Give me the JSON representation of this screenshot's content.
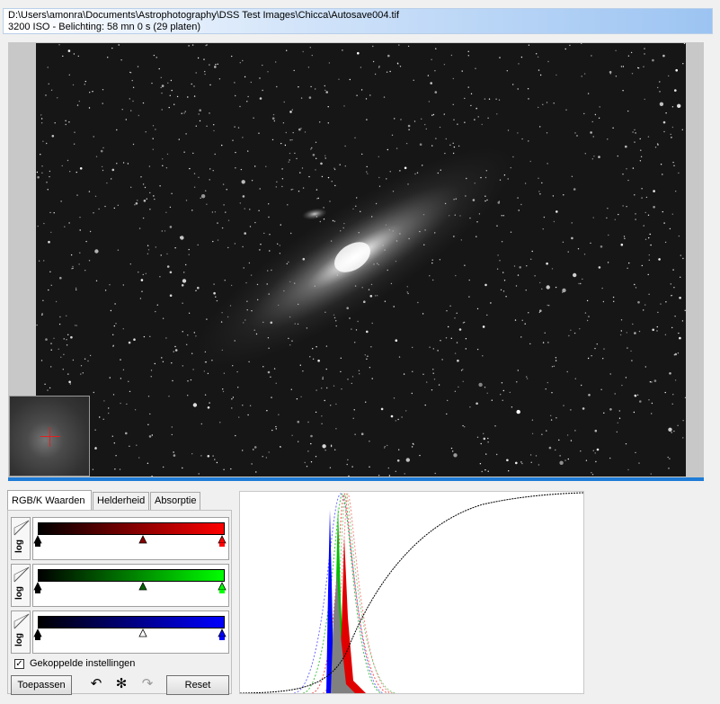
{
  "header": {
    "file_path": "D:\\Users\\amonra\\Documents\\Astrophotography\\DSS Test Images\\Chicca\\Autosave004.tif",
    "exposure_info": "3200 ISO - Belichting: 58 mn 0 s (29 platen)"
  },
  "tabs": [
    {
      "label": "RGB/K Waarden",
      "active": true
    },
    {
      "label": "Helderheid",
      "active": false
    },
    {
      "label": "Absorptie",
      "active": false
    }
  ],
  "channels": [
    {
      "name": "red",
      "color": "#ff0000",
      "log_label": "log",
      "marker_colors": [
        "#000000",
        "#8b0000",
        "#ff0000"
      ]
    },
    {
      "name": "green",
      "color": "#00ff00",
      "log_label": "log",
      "marker_colors": [
        "#000000",
        "#006400",
        "#00ff00"
      ]
    },
    {
      "name": "blue",
      "color": "#0000ff",
      "log_label": "log",
      "marker_colors": [
        "#000000",
        "#ffffff",
        "#0000ff"
      ]
    }
  ],
  "options": {
    "linked_settings_label": "Gekoppelde instellingen",
    "linked_settings_checked": true
  },
  "buttons": {
    "apply_label": "Toepassen",
    "reset_label": "Reset",
    "undo_icon": "undo-icon",
    "settings_icon": "gear-icon",
    "redo_icon": "redo-icon"
  }
}
